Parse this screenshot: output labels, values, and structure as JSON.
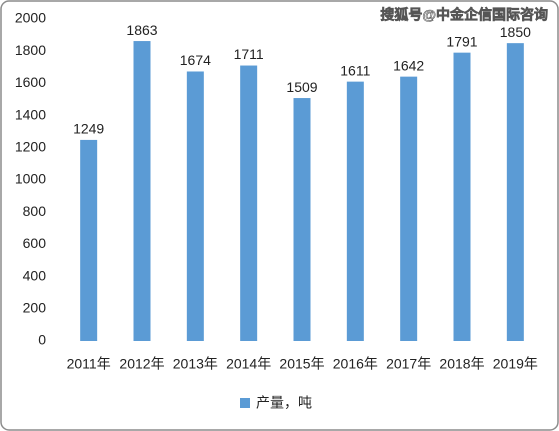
{
  "chart_data": {
    "type": "bar",
    "watermark": "搜狐号@中金企信国际咨询",
    "categories": [
      "2011年",
      "2012年",
      "2013年",
      "2014年",
      "2015年",
      "2016年",
      "2017年",
      "2018年",
      "2019年"
    ],
    "series": [
      {
        "name": "产量，吨",
        "color": "#5b9bd5",
        "values": [
          1249,
          1863,
          1674,
          1711,
          1509,
          1611,
          1642,
          1791,
          1850
        ]
      }
    ],
    "ylim": [
      0,
      2000
    ],
    "yticks": [
      0,
      200,
      400,
      600,
      800,
      1000,
      1200,
      1400,
      1600,
      1800,
      2000
    ],
    "grid": false,
    "legend": "bottom",
    "data_labels": true
  }
}
